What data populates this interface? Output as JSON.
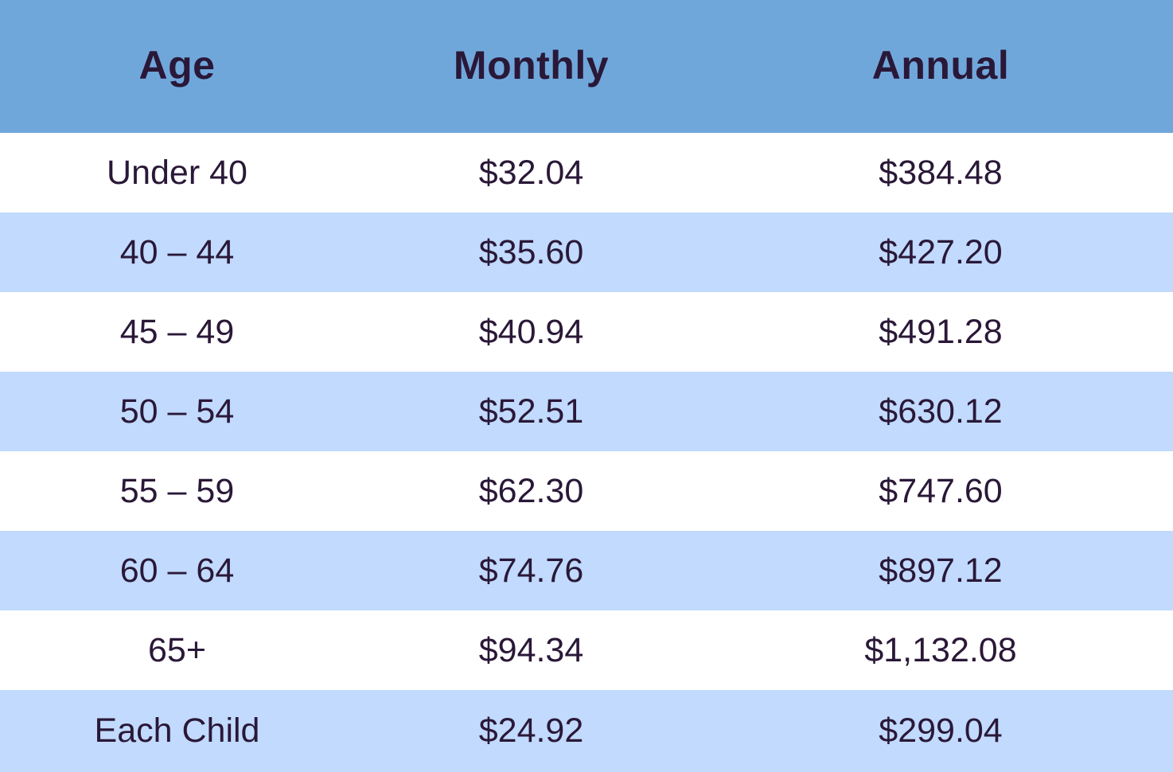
{
  "colors": {
    "header_bg": "#70a7db",
    "row_odd_bg": "#ffffff",
    "row_even_bg": "#c1dafd",
    "text": "#2a1838"
  },
  "table": {
    "headers": [
      "Age",
      "Monthly",
      "Annual"
    ],
    "rows": [
      [
        "Under 40",
        "$32.04",
        "$384.48"
      ],
      [
        "40 – 44",
        "$35.60",
        "$427.20"
      ],
      [
        "45 – 49",
        "$40.94",
        "$491.28"
      ],
      [
        "50 – 54",
        "$52.51",
        "$630.12"
      ],
      [
        "55 – 59",
        "$62.30",
        "$747.60"
      ],
      [
        "60 – 64",
        "$74.76",
        "$897.12"
      ],
      [
        "65+",
        "$94.34",
        "$1,132.08"
      ],
      [
        "Each Child",
        "$24.92",
        "$299.04"
      ]
    ]
  }
}
